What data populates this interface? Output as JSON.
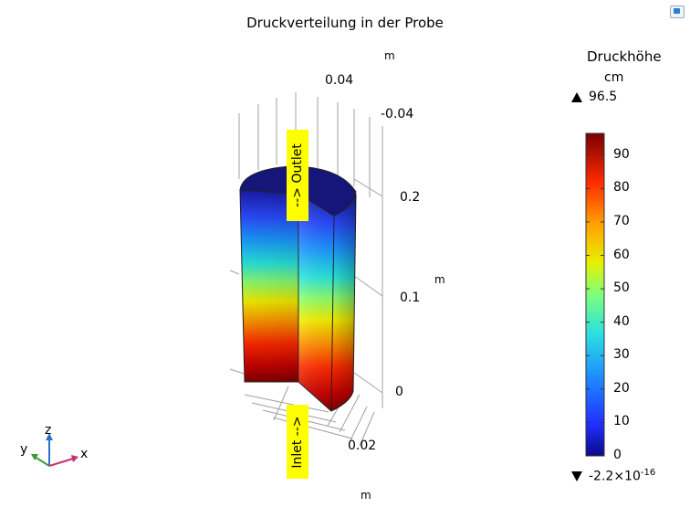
{
  "title": "Druckverteilung in der Probe",
  "axes": {
    "z_unit": "m",
    "x_unit": "m",
    "y_unit": "m",
    "top_ticks": [
      "0.04",
      "-0.04"
    ],
    "z_ticks": [
      "0.2",
      "0.1",
      "0"
    ],
    "bottom_tick": "0.02"
  },
  "annotations": {
    "outlet": "--> Outlet",
    "inlet": "Inlet -->"
  },
  "colorbar": {
    "title": "Druckhöhe",
    "unit": "cm",
    "max_label": "96.5",
    "min_label_base": "-2.2×10",
    "min_label_exp": "-16",
    "ticks": [
      "90",
      "80",
      "70",
      "60",
      "50",
      "40",
      "30",
      "20",
      "10",
      "0"
    ],
    "tick_values": [
      90,
      80,
      70,
      60,
      50,
      40,
      30,
      20,
      10,
      0
    ],
    "range": [
      0,
      96.5
    ]
  },
  "triad": {
    "z": "z",
    "y": "y",
    "x": "x"
  },
  "colors": {
    "outlet_bg": "#ffff00",
    "inlet_bg": "#ffff00",
    "grid": "#a0a0a0"
  }
}
